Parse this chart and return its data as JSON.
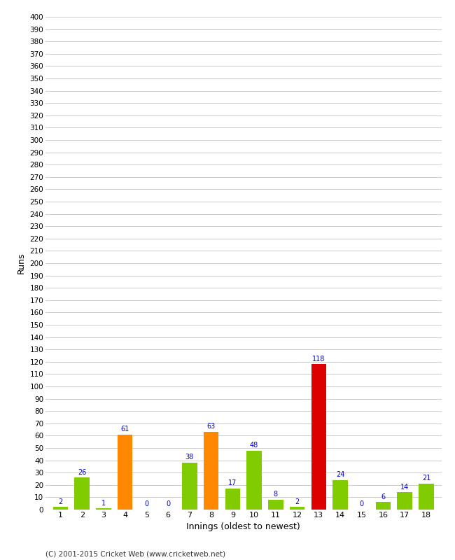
{
  "innings": [
    1,
    2,
    3,
    4,
    5,
    6,
    7,
    8,
    9,
    10,
    11,
    12,
    13,
    14,
    15,
    16,
    17,
    18
  ],
  "runs": [
    2,
    26,
    1,
    61,
    0,
    0,
    38,
    63,
    17,
    48,
    8,
    2,
    118,
    24,
    0,
    6,
    14,
    21
  ],
  "colors": [
    "#80cc00",
    "#80cc00",
    "#80cc00",
    "#ff8800",
    "#80cc00",
    "#80cc00",
    "#80cc00",
    "#ff8800",
    "#80cc00",
    "#80cc00",
    "#80cc00",
    "#80cc00",
    "#dd0000",
    "#80cc00",
    "#80cc00",
    "#80cc00",
    "#80cc00",
    "#80cc00"
  ],
  "xlabel": "Innings (oldest to newest)",
  "ylabel": "Runs",
  "ylim": [
    0,
    400
  ],
  "background_color": "#ffffff",
  "grid_color": "#cccccc",
  "label_color": "#0000cc",
  "footer": "(C) 2001-2015 Cricket Web (www.cricketweb.net)"
}
